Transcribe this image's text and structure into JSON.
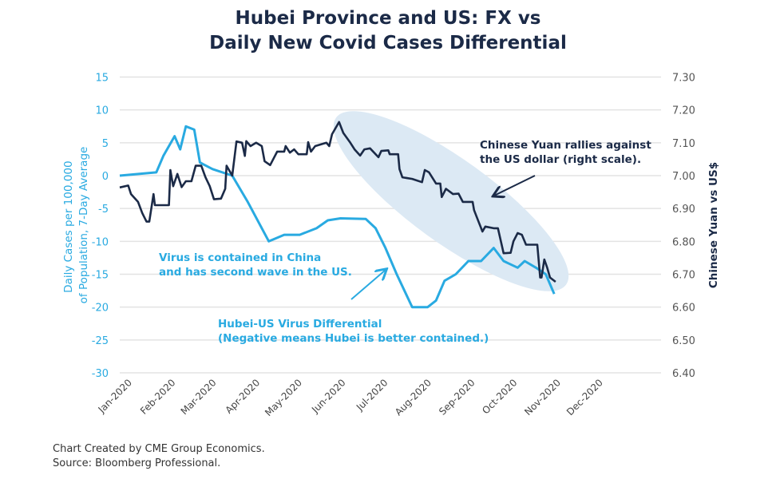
{
  "chart_data": {
    "type": "line",
    "title": "Hubei Province and US: FX vs Daily New Covid Cases Differential",
    "title_lines": [
      "Hubei Province and US: FX vs",
      "Daily New Covid Cases Differential"
    ],
    "ylabel_left_lines": [
      "Daily Cases per 100,000",
      "of Population, 7-Day Average"
    ],
    "ylabel_right": "Chinese Yuan vs US$",
    "ylim_left": [
      -30,
      15
    ],
    "ylim_right": [
      6.4,
      7.3
    ],
    "xlim": [
      "2019-12-23",
      "2021-01-11"
    ],
    "left_ticks": [
      "15",
      "10",
      "5",
      "0",
      "-5",
      "-10",
      "-15",
      "-20",
      "-25",
      "-30"
    ],
    "right_ticks": [
      "7.30",
      "7.20",
      "7.10",
      "7.00",
      "6.90",
      "6.80",
      "6.70",
      "6.60",
      "6.50",
      "6.40"
    ],
    "x_ticks": [
      "Jan-2020",
      "Feb-2020",
      "Mar-2020",
      "Apr-2020",
      "May-2020",
      "Jun-2020",
      "Jul-2020",
      "Aug-2020",
      "Sep-2020",
      "Oct-2020",
      "Nov-2020",
      "Dec-2020"
    ],
    "grid": true,
    "series": [
      {
        "axis": "left",
        "color": "#29aae1",
        "points": [
          [
            "2019-12-23",
            0
          ],
          [
            "2020-01-18",
            0.5
          ],
          [
            "2020-01-23",
            3
          ],
          [
            "2020-01-31",
            6
          ],
          [
            "2020-02-04",
            4
          ],
          [
            "2020-02-08",
            7.5
          ],
          [
            "2020-02-14",
            7
          ],
          [
            "2020-02-18",
            2
          ],
          [
            "2020-02-27",
            1
          ],
          [
            "2020-03-12",
            0
          ],
          [
            "2020-03-23",
            -4
          ],
          [
            "2020-04-07",
            -10
          ],
          [
            "2020-04-18",
            -9
          ],
          [
            "2020-04-29",
            -9
          ],
          [
            "2020-05-11",
            -8
          ],
          [
            "2020-05-19",
            -6.8
          ],
          [
            "2020-05-28",
            -6.5
          ],
          [
            "2020-06-15",
            -6.6
          ],
          [
            "2020-06-22",
            -8
          ],
          [
            "2020-06-29",
            -11
          ],
          [
            "2020-07-07",
            -15
          ],
          [
            "2020-07-18",
            -20
          ],
          [
            "2020-07-29",
            -20
          ],
          [
            "2020-08-04",
            -19
          ],
          [
            "2020-08-10",
            -16
          ],
          [
            "2020-08-18",
            -15
          ],
          [
            "2020-08-27",
            -13
          ],
          [
            "2020-09-05",
            -13
          ],
          [
            "2020-09-14",
            -11
          ],
          [
            "2020-09-21",
            -13
          ],
          [
            "2020-10-01",
            -14
          ],
          [
            "2020-10-06",
            -13
          ],
          [
            "2020-10-14",
            -14
          ],
          [
            "2020-10-21",
            -15
          ],
          [
            "2020-10-27",
            -18
          ]
        ]
      },
      {
        "axis": "right",
        "color": "#1b2a47",
        "points": [
          [
            "2019-12-23",
            6.964
          ],
          [
            "2019-12-29",
            6.97
          ],
          [
            "2019-12-31",
            6.944
          ],
          [
            "2020-01-05",
            6.92
          ],
          [
            "2020-01-08",
            6.886
          ],
          [
            "2020-01-11",
            6.86
          ],
          [
            "2020-01-13",
            6.86
          ],
          [
            "2020-01-16",
            6.944
          ],
          [
            "2020-01-17",
            6.91
          ],
          [
            "2020-01-27",
            6.91
          ],
          [
            "2020-01-28",
            7.017
          ],
          [
            "2020-01-30",
            6.968
          ],
          [
            "2020-02-02",
            7.005
          ],
          [
            "2020-02-05",
            6.965
          ],
          [
            "2020-02-08",
            6.983
          ],
          [
            "2020-02-12",
            6.983
          ],
          [
            "2020-02-15",
            7.03
          ],
          [
            "2020-02-19",
            7.03
          ],
          [
            "2020-02-22",
            6.995
          ],
          [
            "2020-02-25",
            6.968
          ],
          [
            "2020-02-28",
            6.928
          ],
          [
            "2020-03-04",
            6.93
          ],
          [
            "2020-03-07",
            6.96
          ],
          [
            "2020-03-08",
            7.03
          ],
          [
            "2020-03-12",
            7.0
          ],
          [
            "2020-03-15",
            7.104
          ],
          [
            "2020-03-19",
            7.1
          ],
          [
            "2020-03-21",
            7.06
          ],
          [
            "2020-03-22",
            7.105
          ],
          [
            "2020-03-25",
            7.09
          ],
          [
            "2020-03-29",
            7.1
          ],
          [
            "2020-04-02",
            7.09
          ],
          [
            "2020-04-04",
            7.044
          ],
          [
            "2020-04-08",
            7.032
          ],
          [
            "2020-04-13",
            7.073
          ],
          [
            "2020-04-18",
            7.073
          ],
          [
            "2020-04-19",
            7.09
          ],
          [
            "2020-04-22",
            7.07
          ],
          [
            "2020-04-25",
            7.08
          ],
          [
            "2020-04-28",
            7.065
          ],
          [
            "2020-05-04",
            7.065
          ],
          [
            "2020-05-05",
            7.102
          ],
          [
            "2020-05-07",
            7.073
          ],
          [
            "2020-05-10",
            7.09
          ],
          [
            "2020-05-18",
            7.1
          ],
          [
            "2020-05-20",
            7.09
          ],
          [
            "2020-05-22",
            7.126
          ],
          [
            "2020-05-27",
            7.163
          ],
          [
            "2020-05-30",
            7.13
          ],
          [
            "2020-06-04",
            7.1
          ],
          [
            "2020-06-07",
            7.08
          ],
          [
            "2020-06-11",
            7.061
          ],
          [
            "2020-06-14",
            7.08
          ],
          [
            "2020-06-18",
            7.083
          ],
          [
            "2020-06-24",
            7.056
          ],
          [
            "2020-06-26",
            7.075
          ],
          [
            "2020-07-01",
            7.077
          ],
          [
            "2020-07-02",
            7.065
          ],
          [
            "2020-07-08",
            7.065
          ],
          [
            "2020-07-09",
            7.02
          ],
          [
            "2020-07-11",
            6.995
          ],
          [
            "2020-07-18",
            6.99
          ],
          [
            "2020-07-25",
            6.98
          ],
          [
            "2020-07-27",
            7.017
          ],
          [
            "2020-07-30",
            7.01
          ],
          [
            "2020-08-04",
            6.976
          ],
          [
            "2020-08-07",
            6.976
          ],
          [
            "2020-08-08",
            6.935
          ],
          [
            "2020-08-11",
            6.96
          ],
          [
            "2020-08-16",
            6.944
          ],
          [
            "2020-08-20",
            6.945
          ],
          [
            "2020-08-23",
            6.92
          ],
          [
            "2020-08-30",
            6.92
          ],
          [
            "2020-08-31",
            6.895
          ],
          [
            "2020-09-03",
            6.862
          ],
          [
            "2020-09-06",
            6.83
          ],
          [
            "2020-09-08",
            6.845
          ],
          [
            "2020-09-14",
            6.84
          ],
          [
            "2020-09-17",
            6.84
          ],
          [
            "2020-09-21",
            6.764
          ],
          [
            "2020-09-26",
            6.765
          ],
          [
            "2020-09-28",
            6.8
          ],
          [
            "2020-10-01",
            6.825
          ],
          [
            "2020-10-04",
            6.82
          ],
          [
            "2020-10-07",
            6.79
          ],
          [
            "2020-10-15",
            6.79
          ],
          [
            "2020-10-17",
            6.69
          ],
          [
            "2020-10-18",
            6.69
          ],
          [
            "2020-10-20",
            6.745
          ],
          [
            "2020-10-22",
            6.72
          ],
          [
            "2020-10-24",
            6.69
          ],
          [
            "2020-10-28",
            6.677
          ]
        ]
      }
    ],
    "annotations": {
      "yuan_lines": [
        "Chinese Yuan rallies against",
        "the US dollar (right scale)."
      ],
      "virus_lines": [
        "Virus is contained in China",
        "and has second wave in the US."
      ],
      "differential_lines": [
        "Hubei-US Virus Differential",
        "(Negative means Hubei is better contained.)"
      ]
    },
    "colors": {
      "accent_blue": "#29aae1",
      "navy": "#1b2a47",
      "highlight": "#dce9f4",
      "grid": "#e3e3e3"
    }
  },
  "footer": {
    "lines": [
      "Chart Created by CME Group Economics.",
      "Source: Bloomberg Professional."
    ]
  }
}
